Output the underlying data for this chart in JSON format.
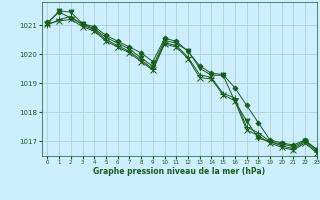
{
  "title": "Graphe pression niveau de la mer (hPa)",
  "xlabel": "Graphe pression niveau de la mer (hPa)",
  "xlim": [
    -0.5,
    23
  ],
  "ylim": [
    1016.5,
    1021.8
  ],
  "yticks": [
    1017,
    1018,
    1019,
    1020,
    1021
  ],
  "xticks": [
    0,
    1,
    2,
    3,
    4,
    5,
    6,
    7,
    8,
    9,
    10,
    11,
    12,
    13,
    14,
    15,
    16,
    17,
    18,
    19,
    20,
    21,
    22,
    23
  ],
  "bg_color": "#cceeff",
  "grid_color": "#aacccc",
  "line_color": "#1a5c1a",
  "series": [
    [
      1021.1,
      1021.45,
      1021.25,
      1021.05,
      1020.95,
      1020.65,
      1020.45,
      1020.25,
      1020.05,
      1019.75,
      1020.55,
      1020.45,
      1020.1,
      1019.6,
      1019.35,
      1019.3,
      1018.85,
      1018.25,
      1017.65,
      1017.05,
      1016.95,
      1016.88,
      1017.05,
      1016.72
    ],
    [
      1021.05,
      1021.5,
      1021.45,
      1021.05,
      1020.88,
      1020.58,
      1020.38,
      1020.18,
      1019.88,
      1019.58,
      1020.48,
      1020.38,
      1020.12,
      1019.52,
      1019.28,
      1019.28,
      1018.38,
      1017.72,
      1017.12,
      1016.98,
      1016.92,
      1016.82,
      1017.02,
      1016.72
    ],
    [
      1021.0,
      1021.2,
      1021.3,
      1021.0,
      1020.85,
      1020.5,
      1020.3,
      1020.1,
      1019.8,
      1019.5,
      1020.4,
      1020.3,
      1019.9,
      1019.3,
      1019.2,
      1018.65,
      1018.5,
      1017.5,
      1017.3,
      1017.0,
      1016.85,
      1016.75,
      1017.0,
      1016.65
    ],
    [
      1021.05,
      1021.15,
      1021.2,
      1020.95,
      1020.8,
      1020.45,
      1020.25,
      1020.05,
      1019.75,
      1019.45,
      1020.35,
      1020.25,
      1019.85,
      1019.2,
      1019.15,
      1018.6,
      1018.4,
      1017.4,
      1017.2,
      1016.95,
      1016.8,
      1016.7,
      1016.95,
      1016.6
    ]
  ],
  "markers": [
    "D",
    "v",
    "+",
    "x"
  ],
  "marker_sizes": [
    2.5,
    3.5,
    5,
    4
  ],
  "lw": 0.7
}
